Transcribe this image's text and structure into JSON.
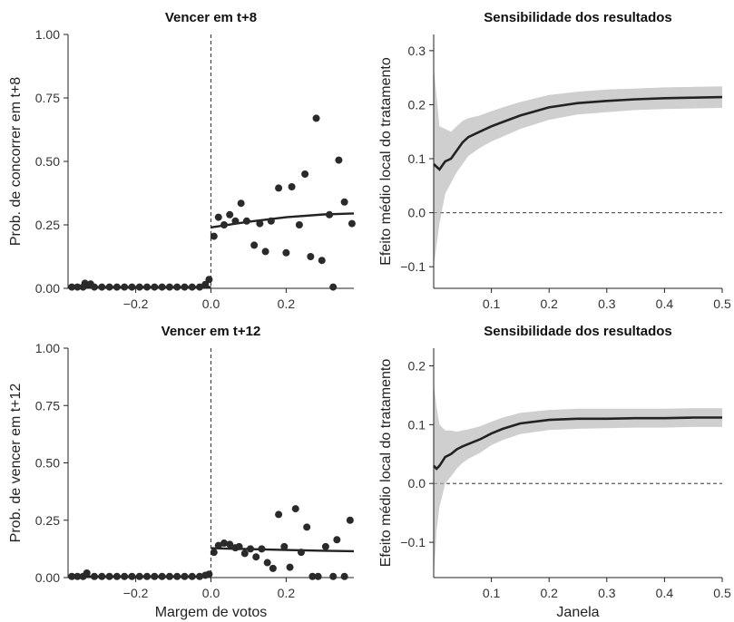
{
  "chart_data": [
    {
      "id": "p1",
      "type": "scatter",
      "title": "Vencer em t+8",
      "xlabel": "",
      "ylabel": "Prob. de concorrer em t+8",
      "xlim": [
        -0.38,
        0.38
      ],
      "ylim": [
        0,
        1
      ],
      "xticks": [
        -0.2,
        0.0,
        0.2
      ],
      "xtick_labels": [
        "−0.2",
        "0.0",
        "0.2"
      ],
      "yticks": [
        0,
        0.25,
        0.5,
        0.75,
        1.0
      ],
      "ytick_labels": [
        "0.00",
        "0.25",
        "0.50",
        "0.75",
        "1.00"
      ],
      "cutoff": 0,
      "points": [
        {
          "x": -0.37,
          "y": 0.005
        },
        {
          "x": -0.355,
          "y": 0.005
        },
        {
          "x": -0.34,
          "y": 0.005
        },
        {
          "x": -0.335,
          "y": 0.02
        },
        {
          "x": -0.32,
          "y": 0.017
        },
        {
          "x": -0.31,
          "y": 0.005
        },
        {
          "x": -0.29,
          "y": 0.005
        },
        {
          "x": -0.27,
          "y": 0.005
        },
        {
          "x": -0.25,
          "y": 0.005
        },
        {
          "x": -0.23,
          "y": 0.005
        },
        {
          "x": -0.21,
          "y": 0.005
        },
        {
          "x": -0.19,
          "y": 0.005
        },
        {
          "x": -0.17,
          "y": 0.005
        },
        {
          "x": -0.15,
          "y": 0.005
        },
        {
          "x": -0.13,
          "y": 0.005
        },
        {
          "x": -0.11,
          "y": 0.005
        },
        {
          "x": -0.09,
          "y": 0.005
        },
        {
          "x": -0.07,
          "y": 0.005
        },
        {
          "x": -0.05,
          "y": 0.005
        },
        {
          "x": -0.03,
          "y": 0.005
        },
        {
          "x": -0.015,
          "y": 0.015
        },
        {
          "x": -0.005,
          "y": 0.035
        },
        {
          "x": 0.008,
          "y": 0.205
        },
        {
          "x": 0.02,
          "y": 0.28
        },
        {
          "x": 0.035,
          "y": 0.25
        },
        {
          "x": 0.05,
          "y": 0.29
        },
        {
          "x": 0.065,
          "y": 0.265
        },
        {
          "x": 0.08,
          "y": 0.335
        },
        {
          "x": 0.095,
          "y": 0.265
        },
        {
          "x": 0.115,
          "y": 0.17
        },
        {
          "x": 0.13,
          "y": 0.255
        },
        {
          "x": 0.145,
          "y": 0.145
        },
        {
          "x": 0.16,
          "y": 0.265
        },
        {
          "x": 0.18,
          "y": 0.395
        },
        {
          "x": 0.2,
          "y": 0.14
        },
        {
          "x": 0.215,
          "y": 0.4
        },
        {
          "x": 0.235,
          "y": 0.25
        },
        {
          "x": 0.25,
          "y": 0.45
        },
        {
          "x": 0.265,
          "y": 0.125
        },
        {
          "x": 0.28,
          "y": 0.67
        },
        {
          "x": 0.295,
          "y": 0.11
        },
        {
          "x": 0.315,
          "y": 0.29
        },
        {
          "x": 0.325,
          "y": 0.005
        },
        {
          "x": 0.34,
          "y": 0.505
        },
        {
          "x": 0.355,
          "y": 0.34
        },
        {
          "x": 0.375,
          "y": 0.255
        }
      ],
      "fit_left": [
        [
          -0.38,
          0.005
        ],
        [
          0,
          0.005
        ]
      ],
      "fit_right": [
        [
          0,
          0.24
        ],
        [
          0.1,
          0.262
        ],
        [
          0.2,
          0.28
        ],
        [
          0.3,
          0.291
        ],
        [
          0.38,
          0.295
        ]
      ]
    },
    {
      "id": "p2",
      "type": "line",
      "title": "Sensibilidade dos resultados",
      "xlabel": "",
      "ylabel": "Efeito médio local do tratamento",
      "xlim": [
        0.0,
        0.5
      ],
      "ylim": [
        -0.14,
        0.33
      ],
      "xticks": [
        0.1,
        0.2,
        0.3,
        0.4,
        0.5
      ],
      "xtick_labels": [
        "0.1",
        "0.2",
        "0.3",
        "0.4",
        "0.5"
      ],
      "yticks": [
        -0.1,
        0.0,
        0.1,
        0.2,
        0.3
      ],
      "ytick_labels": [
        "−0.1",
        "0.0",
        "0.1",
        "0.2",
        "0.3"
      ],
      "zero_line": 0,
      "x": [
        0.0,
        0.01,
        0.02,
        0.03,
        0.04,
        0.05,
        0.06,
        0.08,
        0.1,
        0.12,
        0.15,
        0.2,
        0.25,
        0.3,
        0.35,
        0.4,
        0.45,
        0.5
      ],
      "estimate": [
        0.09,
        0.08,
        0.095,
        0.1,
        0.115,
        0.13,
        0.14,
        0.15,
        0.16,
        0.168,
        0.18,
        0.195,
        0.203,
        0.207,
        0.21,
        0.212,
        0.213,
        0.214
      ],
      "ci_upper": [
        0.27,
        0.16,
        0.155,
        0.15,
        0.16,
        0.17,
        0.175,
        0.18,
        0.188,
        0.195,
        0.205,
        0.218,
        0.224,
        0.228,
        0.23,
        0.232,
        0.233,
        0.234
      ],
      "ci_lower": [
        -0.1,
        -0.02,
        0.035,
        0.055,
        0.075,
        0.09,
        0.105,
        0.12,
        0.132,
        0.141,
        0.155,
        0.172,
        0.182,
        0.186,
        0.19,
        0.192,
        0.193,
        0.194
      ]
    },
    {
      "id": "p3",
      "type": "scatter",
      "title": "Vencer em t+12",
      "xlabel": "Margem de votos",
      "ylabel": "Prob. de vencer em t+12",
      "xlim": [
        -0.38,
        0.38
      ],
      "ylim": [
        0,
        1
      ],
      "xticks": [
        -0.2,
        0.0,
        0.2
      ],
      "xtick_labels": [
        "−0.2",
        "0.0",
        "0.2"
      ],
      "yticks": [
        0,
        0.25,
        0.5,
        0.75,
        1.0
      ],
      "ytick_labels": [
        "0.00",
        "0.25",
        "0.50",
        "0.75",
        "1.00"
      ],
      "cutoff": 0,
      "points": [
        {
          "x": -0.37,
          "y": 0.005
        },
        {
          "x": -0.355,
          "y": 0.005
        },
        {
          "x": -0.34,
          "y": 0.005
        },
        {
          "x": -0.33,
          "y": 0.02
        },
        {
          "x": -0.31,
          "y": 0.005
        },
        {
          "x": -0.29,
          "y": 0.005
        },
        {
          "x": -0.27,
          "y": 0.005
        },
        {
          "x": -0.25,
          "y": 0.005
        },
        {
          "x": -0.23,
          "y": 0.005
        },
        {
          "x": -0.21,
          "y": 0.005
        },
        {
          "x": -0.19,
          "y": 0.005
        },
        {
          "x": -0.17,
          "y": 0.005
        },
        {
          "x": -0.15,
          "y": 0.005
        },
        {
          "x": -0.13,
          "y": 0.005
        },
        {
          "x": -0.11,
          "y": 0.005
        },
        {
          "x": -0.09,
          "y": 0.005
        },
        {
          "x": -0.07,
          "y": 0.005
        },
        {
          "x": -0.05,
          "y": 0.005
        },
        {
          "x": -0.03,
          "y": 0.005
        },
        {
          "x": -0.015,
          "y": 0.01
        },
        {
          "x": -0.005,
          "y": 0.015
        },
        {
          "x": 0.008,
          "y": 0.11
        },
        {
          "x": 0.02,
          "y": 0.14
        },
        {
          "x": 0.035,
          "y": 0.15
        },
        {
          "x": 0.05,
          "y": 0.145
        },
        {
          "x": 0.065,
          "y": 0.13
        },
        {
          "x": 0.075,
          "y": 0.135
        },
        {
          "x": 0.09,
          "y": 0.105
        },
        {
          "x": 0.105,
          "y": 0.125
        },
        {
          "x": 0.12,
          "y": 0.09
        },
        {
          "x": 0.135,
          "y": 0.125
        },
        {
          "x": 0.15,
          "y": 0.065
        },
        {
          "x": 0.165,
          "y": 0.04
        },
        {
          "x": 0.18,
          "y": 0.275
        },
        {
          "x": 0.195,
          "y": 0.135
        },
        {
          "x": 0.21,
          "y": 0.045
        },
        {
          "x": 0.225,
          "y": 0.3
        },
        {
          "x": 0.24,
          "y": 0.11
        },
        {
          "x": 0.255,
          "y": 0.22
        },
        {
          "x": 0.27,
          "y": 0.005
        },
        {
          "x": 0.285,
          "y": 0.005
        },
        {
          "x": 0.305,
          "y": 0.135
        },
        {
          "x": 0.325,
          "y": 0.005
        },
        {
          "x": 0.335,
          "y": 0.165
        },
        {
          "x": 0.355,
          "y": 0.005
        },
        {
          "x": 0.37,
          "y": 0.25
        }
      ],
      "fit_left": [
        [
          -0.38,
          0.005
        ],
        [
          0,
          0.005
        ]
      ],
      "fit_right": [
        [
          0,
          0.128
        ],
        [
          0.1,
          0.124
        ],
        [
          0.2,
          0.12
        ],
        [
          0.3,
          0.117
        ],
        [
          0.38,
          0.115
        ]
      ]
    },
    {
      "id": "p4",
      "type": "line",
      "title": "Sensibilidade dos resultados",
      "xlabel": "Janela",
      "ylabel": "Efeito médio local do tratamento",
      "xlim": [
        0.0,
        0.5
      ],
      "ylim": [
        -0.16,
        0.23
      ],
      "xticks": [
        0.1,
        0.2,
        0.3,
        0.4,
        0.5
      ],
      "xtick_labels": [
        "0.1",
        "0.2",
        "0.3",
        "0.4",
        "0.5"
      ],
      "yticks": [
        -0.1,
        0.0,
        0.1,
        0.2
      ],
      "ytick_labels": [
        "−0.1",
        "0.0",
        "0.1",
        "0.2"
      ],
      "zero_line": 0,
      "x": [
        0.0,
        0.005,
        0.01,
        0.02,
        0.03,
        0.04,
        0.05,
        0.06,
        0.08,
        0.1,
        0.12,
        0.15,
        0.2,
        0.25,
        0.3,
        0.35,
        0.4,
        0.45,
        0.5
      ],
      "estimate": [
        0.03,
        0.025,
        0.03,
        0.045,
        0.05,
        0.058,
        0.063,
        0.067,
        0.075,
        0.085,
        0.093,
        0.102,
        0.108,
        0.11,
        0.11,
        0.111,
        0.111,
        0.112,
        0.112
      ],
      "ci_upper": [
        0.17,
        0.13,
        0.1,
        0.09,
        0.09,
        0.088,
        0.09,
        0.092,
        0.097,
        0.105,
        0.112,
        0.12,
        0.125,
        0.127,
        0.127,
        0.127,
        0.127,
        0.128,
        0.128
      ],
      "ci_lower": [
        -0.16,
        -0.08,
        -0.04,
        0.0,
        0.012,
        0.025,
        0.035,
        0.042,
        0.052,
        0.065,
        0.074,
        0.084,
        0.091,
        0.093,
        0.094,
        0.095,
        0.095,
        0.096,
        0.096
      ]
    }
  ]
}
